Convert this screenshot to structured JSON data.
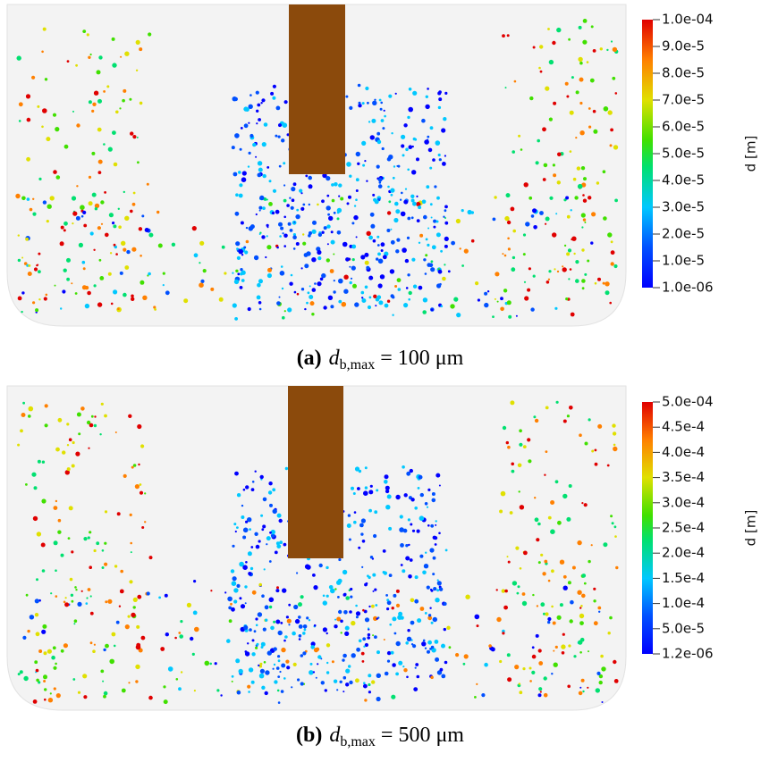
{
  "panels": [
    {
      "label": "(a)",
      "symbol": "d",
      "subscript": "b,max",
      "expression": "= 100 μm",
      "colorbar_title": "d [m]",
      "colorbar_ticks": [
        "1.0e-06",
        "1.0e-5",
        "2.0e-5",
        "3.0e-5",
        "4.0e-5",
        "5.0e-5",
        "6.0e-5",
        "7.0e-5",
        "8.0e-5",
        "9.0e-5",
        "1.0e-04"
      ]
    },
    {
      "label": "(b)",
      "symbol": "d",
      "subscript": "b,max",
      "expression": "= 500 μm",
      "colorbar_title": "d [m]",
      "colorbar_ticks": [
        "1.2e-06",
        "5.0e-5",
        "1.0e-4",
        "1.5e-4",
        "2.0e-4",
        "2.5e-4",
        "3.0e-4",
        "3.5e-4",
        "4.0e-4",
        "4.5e-4",
        "5.0e-04"
      ]
    }
  ]
}
